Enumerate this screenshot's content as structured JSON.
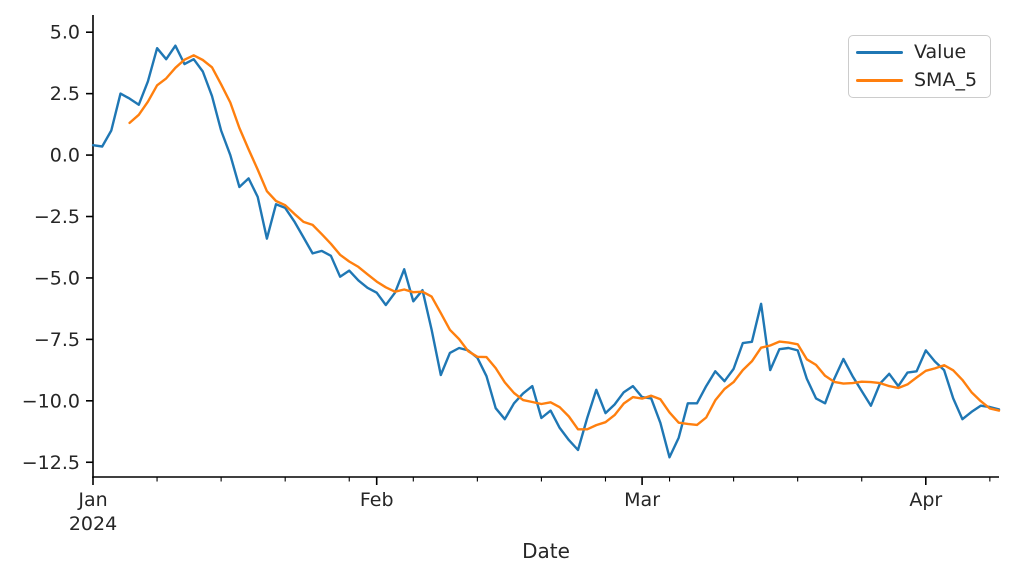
{
  "chart_data": {
    "type": "line",
    "title": "",
    "xlabel": "Date",
    "style": {
      "background": "#ffffff",
      "text_color": "#262626",
      "spine_color": "#000000",
      "legend_border_color": "#cccccc",
      "legend_position": "upper right",
      "grid": "off",
      "spines": "left and bottom only"
    },
    "x_axis": {
      "start_date": "2024-01-01",
      "end_date": "2024-04-09",
      "freq": "daily",
      "n_points": 100,
      "major_ticks": [
        {
          "label": "Jan",
          "sublabel": "2024",
          "day": 0
        },
        {
          "label": "Feb",
          "sublabel": "",
          "day": 31
        },
        {
          "label": "Mar",
          "sublabel": "",
          "day": 60
        },
        {
          "label": "Apr",
          "sublabel": "",
          "day": 91
        }
      ],
      "minor_tick_days": [
        7,
        14,
        21,
        28,
        35,
        42,
        49,
        56,
        63,
        70,
        77,
        84,
        98
      ]
    },
    "y_axis": {
      "lim": [
        -13.1,
        5.7
      ],
      "ticks": [
        {
          "value": 5.0,
          "label": "5.0"
        },
        {
          "value": 2.5,
          "label": "2.5"
        },
        {
          "value": 0.0,
          "label": "0.0"
        },
        {
          "value": -2.5,
          "label": "−2.5"
        },
        {
          "value": -5.0,
          "label": "−5.0"
        },
        {
          "value": -7.5,
          "label": "−7.5"
        },
        {
          "value": -10.0,
          "label": "−10.0"
        },
        {
          "value": -12.5,
          "label": "−12.5"
        }
      ]
    },
    "series": [
      {
        "name": "Value",
        "color": "#1f77b4",
        "values": [
          0.4,
          0.35,
          1.0,
          2.5,
          2.3,
          2.05,
          3.0,
          4.35,
          3.9,
          4.45,
          3.7,
          3.9,
          3.4,
          2.4,
          1.0,
          0.0,
          -1.3,
          -0.95,
          -1.7,
          -3.4,
          -2.0,
          -2.15,
          -2.7,
          -3.35,
          -4.0,
          -3.9,
          -4.1,
          -4.95,
          -4.7,
          -5.1,
          -5.4,
          -5.6,
          -6.1,
          -5.6,
          -4.65,
          -5.95,
          -5.5,
          -7.1,
          -8.95,
          -8.05,
          -7.85,
          -7.95,
          -8.25,
          -9.0,
          -10.3,
          -10.75,
          -10.1,
          -9.7,
          -9.4,
          -10.7,
          -10.4,
          -11.1,
          -11.6,
          -12.0,
          -10.7,
          -9.55,
          -10.5,
          -10.15,
          -9.65,
          -9.4,
          -9.85,
          -9.9,
          -10.9,
          -12.3,
          -11.5,
          -10.1,
          -10.1,
          -9.4,
          -8.8,
          -9.2,
          -8.7,
          -7.65,
          -7.6,
          -6.05,
          -8.75,
          -7.9,
          -7.85,
          -7.95,
          -9.1,
          -9.9,
          -10.1,
          -9.1,
          -8.3,
          -9.0,
          -9.6,
          -10.2,
          -9.3,
          -8.9,
          -9.4,
          -8.85,
          -8.8,
          -7.95,
          -8.4,
          -8.75,
          -9.9,
          -10.75,
          -10.45,
          -10.2,
          -10.25,
          -10.35
        ]
      },
      {
        "name": "SMA_5",
        "color": "#ff7f0e",
        "derived": "5-day simple moving average of Value",
        "values": [
          null,
          null,
          null,
          null,
          1.31,
          1.64,
          2.17,
          2.84,
          3.12,
          3.55,
          3.88,
          4.06,
          3.87,
          3.57,
          2.88,
          2.14,
          1.1,
          0.23,
          -0.59,
          -1.47,
          -1.87,
          -2.04,
          -2.39,
          -2.72,
          -2.84,
          -3.22,
          -3.61,
          -4.06,
          -4.33,
          -4.55,
          -4.85,
          -5.15,
          -5.38,
          -5.56,
          -5.47,
          -5.58,
          -5.56,
          -5.76,
          -6.43,
          -7.11,
          -7.49,
          -7.98,
          -8.21,
          -8.22,
          -8.67,
          -9.25,
          -9.68,
          -9.97,
          -10.05,
          -10.13,
          -10.06,
          -10.26,
          -10.64,
          -11.16,
          -11.16,
          -10.99,
          -10.87,
          -10.58,
          -10.11,
          -9.85,
          -9.91,
          -9.79,
          -9.94,
          -10.47,
          -10.89,
          -10.94,
          -10.98,
          -10.68,
          -9.98,
          -9.52,
          -9.24,
          -8.75,
          -8.39,
          -7.84,
          -7.75,
          -7.59,
          -7.63,
          -7.7,
          -8.31,
          -8.54,
          -8.98,
          -9.23,
          -9.3,
          -9.28,
          -9.22,
          -9.24,
          -9.28,
          -9.4,
          -9.48,
          -9.33,
          -9.05,
          -8.78,
          -8.68,
          -8.55,
          -8.76,
          -9.15,
          -9.65,
          -10.01,
          -10.31,
          -10.4
        ]
      }
    ],
    "legend": {
      "entries": [
        "Value",
        "SMA_5"
      ]
    }
  }
}
